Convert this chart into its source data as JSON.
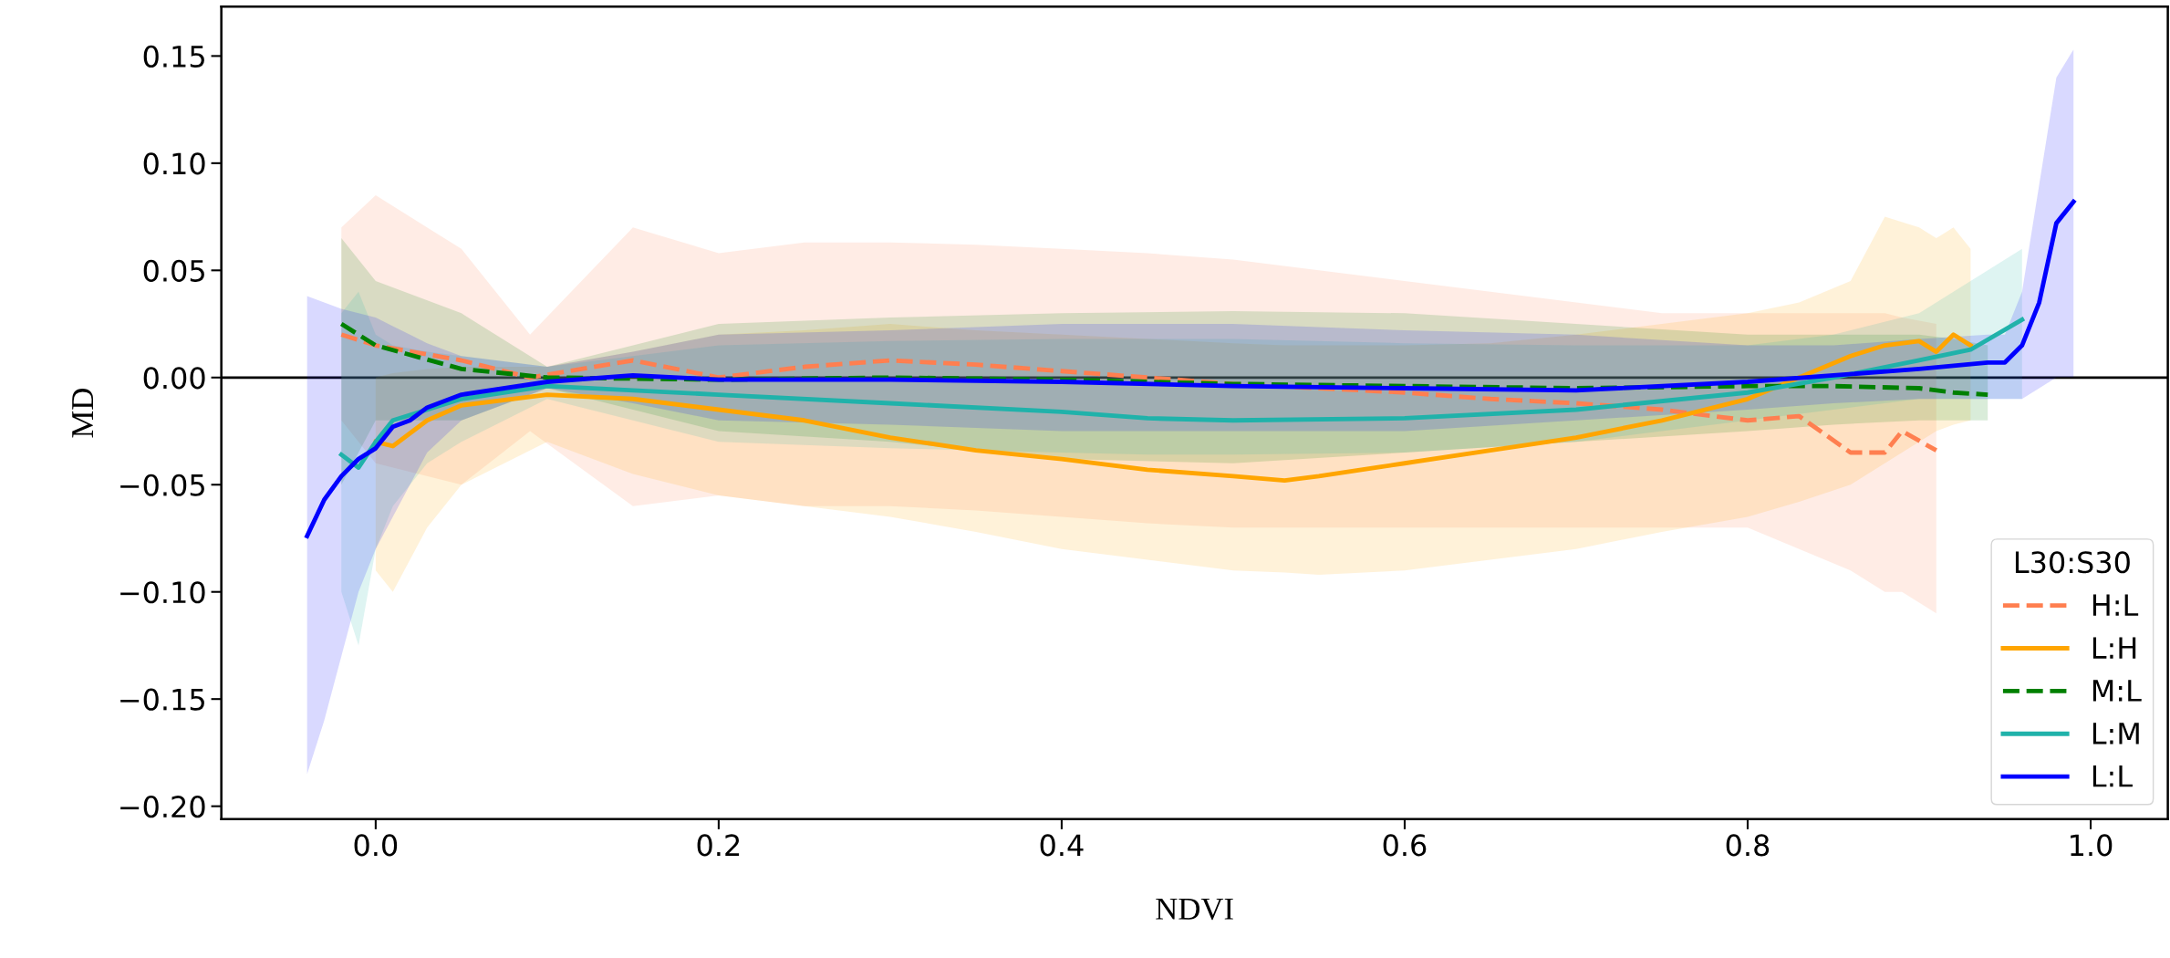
{
  "chart_data": {
    "type": "line",
    "xlabel": "NDVI",
    "ylabel": "MD",
    "legend_title": "L30:S30",
    "legend": "bottom right",
    "grid": false,
    "marker": "none",
    "xlim": [
      -0.09,
      1.045
    ],
    "xticks": [
      {
        "value": 0,
        "label": "0.0"
      },
      0.2,
      0.4,
      0.6,
      0.8,
      {
        "value": 1,
        "label": "1.0"
      }
    ],
    "ylim": [
      -0.206,
      0.173
    ],
    "yticks": [
      {
        "value": -0.2,
        "label": "−0.20"
      },
      {
        "value": -0.15,
        "label": "−0.15"
      },
      {
        "value": -0.1,
        "label": "−0.10"
      },
      {
        "value": -0.05,
        "label": "−0.05"
      },
      {
        "value": 0,
        "label": "0.00"
      },
      {
        "value": 0.05,
        "label": "0.05"
      },
      {
        "value": 0.1,
        "label": "0.10"
      },
      {
        "value": 0.15,
        "label": "0.15"
      }
    ],
    "ref_lines": [
      {
        "axis": "y",
        "value": 0,
        "color": "#000000",
        "line_style": "solid"
      }
    ],
    "series": [
      {
        "name": "H:L",
        "color": "#ff7f50",
        "line_style": "dashed",
        "x": [
          -0.02,
          0.0,
          0.05,
          0.09,
          0.15,
          0.2,
          0.25,
          0.3,
          0.35,
          0.4,
          0.45,
          0.5,
          0.55,
          0.6,
          0.65,
          0.7,
          0.75,
          0.8,
          0.83,
          0.86,
          0.88,
          0.89,
          0.91
        ],
        "values": [
          0.02,
          0.015,
          0.008,
          0.0,
          0.008,
          0.0,
          0.005,
          0.008,
          0.006,
          0.003,
          0.0,
          -0.003,
          -0.005,
          -0.007,
          -0.01,
          -0.012,
          -0.015,
          -0.02,
          -0.018,
          -0.035,
          -0.035,
          -0.025,
          -0.034
        ],
        "upper": [
          0.07,
          0.085,
          0.06,
          0.02,
          0.07,
          0.058,
          0.063,
          0.063,
          0.062,
          0.06,
          0.058,
          0.055,
          0.05,
          0.045,
          0.04,
          0.035,
          0.03,
          0.03,
          0.03,
          0.03,
          0.03,
          0.028,
          0.025
        ],
        "lower": [
          -0.02,
          -0.04,
          -0.05,
          -0.025,
          -0.06,
          -0.055,
          -0.06,
          -0.06,
          -0.062,
          -0.065,
          -0.068,
          -0.07,
          -0.07,
          -0.07,
          -0.07,
          -0.07,
          -0.07,
          -0.07,
          -0.08,
          -0.09,
          -0.1,
          -0.1,
          -0.11
        ]
      },
      {
        "name": "L:H",
        "color": "#ffa500",
        "line_style": "solid",
        "x": [
          0.0,
          0.01,
          0.03,
          0.05,
          0.1,
          0.15,
          0.2,
          0.25,
          0.3,
          0.35,
          0.4,
          0.45,
          0.5,
          0.53,
          0.55,
          0.6,
          0.65,
          0.7,
          0.75,
          0.8,
          0.83,
          0.86,
          0.88,
          0.9,
          0.91,
          0.92,
          0.93
        ],
        "values": [
          -0.03,
          -0.032,
          -0.02,
          -0.013,
          -0.008,
          -0.01,
          -0.015,
          -0.02,
          -0.028,
          -0.034,
          -0.038,
          -0.043,
          -0.046,
          -0.048,
          -0.046,
          -0.04,
          -0.034,
          -0.028,
          -0.02,
          -0.01,
          0.0,
          0.01,
          0.015,
          0.017,
          0.012,
          0.02,
          0.015
        ],
        "upper": [
          0.0,
          0.002,
          0.004,
          0.005,
          0.005,
          0.012,
          0.02,
          0.022,
          0.025,
          0.022,
          0.02,
          0.018,
          0.016,
          0.015,
          0.015,
          0.015,
          0.016,
          0.02,
          0.025,
          0.03,
          0.035,
          0.045,
          0.075,
          0.07,
          0.065,
          0.07,
          0.06
        ],
        "lower": [
          -0.09,
          -0.1,
          -0.07,
          -0.05,
          -0.03,
          -0.045,
          -0.055,
          -0.06,
          -0.065,
          -0.072,
          -0.08,
          -0.085,
          -0.09,
          -0.091,
          -0.092,
          -0.09,
          -0.085,
          -0.08,
          -0.072,
          -0.065,
          -0.058,
          -0.05,
          -0.04,
          -0.03,
          -0.025,
          -0.022,
          -0.02
        ]
      },
      {
        "name": "M:L",
        "color": "#008000",
        "line_style": "dashed",
        "x": [
          -0.02,
          0.0,
          0.05,
          0.1,
          0.2,
          0.3,
          0.4,
          0.5,
          0.6,
          0.7,
          0.8,
          0.85,
          0.9,
          0.92,
          0.94
        ],
        "values": [
          0.025,
          0.015,
          0.004,
          0.0,
          -0.001,
          0.0,
          -0.001,
          -0.003,
          -0.004,
          -0.005,
          -0.004,
          -0.004,
          -0.005,
          -0.007,
          -0.008
        ],
        "upper": [
          0.065,
          0.045,
          0.03,
          0.005,
          0.025,
          0.028,
          0.03,
          0.031,
          0.03,
          0.025,
          0.02,
          0.02,
          0.02,
          0.018,
          0.015
        ],
        "lower": [
          -0.05,
          -0.02,
          -0.02,
          -0.005,
          -0.025,
          -0.03,
          -0.038,
          -0.04,
          -0.035,
          -0.03,
          -0.025,
          -0.022,
          -0.02,
          -0.02,
          -0.02
        ]
      },
      {
        "name": "L:M",
        "color": "#20b2aa",
        "line_style": "solid",
        "x": [
          -0.02,
          -0.01,
          0.0,
          0.01,
          0.03,
          0.05,
          0.1,
          0.2,
          0.3,
          0.4,
          0.45,
          0.5,
          0.6,
          0.7,
          0.8,
          0.85,
          0.9,
          0.93,
          0.96
        ],
        "values": [
          -0.036,
          -0.042,
          -0.03,
          -0.02,
          -0.015,
          -0.01,
          -0.004,
          -0.008,
          -0.012,
          -0.016,
          -0.019,
          -0.02,
          -0.019,
          -0.015,
          -0.007,
          0.0,
          0.008,
          0.013,
          0.027
        ],
        "upper": [
          0.03,
          0.04,
          0.02,
          0.015,
          0.012,
          0.01,
          0.005,
          0.015,
          0.017,
          0.018,
          0.018,
          0.018,
          0.016,
          0.015,
          0.015,
          0.02,
          0.03,
          0.045,
          0.06
        ],
        "lower": [
          -0.1,
          -0.125,
          -0.08,
          -0.06,
          -0.04,
          -0.03,
          -0.01,
          -0.03,
          -0.033,
          -0.035,
          -0.036,
          -0.036,
          -0.035,
          -0.03,
          -0.02,
          -0.015,
          -0.01,
          -0.01,
          -0.01
        ]
      },
      {
        "name": "L:L",
        "color": "#0000ff",
        "line_style": "solid",
        "x": [
          -0.04,
          -0.03,
          -0.02,
          -0.01,
          0.0,
          0.01,
          0.02,
          0.03,
          0.05,
          0.1,
          0.15,
          0.2,
          0.3,
          0.4,
          0.5,
          0.6,
          0.7,
          0.8,
          0.85,
          0.9,
          0.94,
          0.95,
          0.96,
          0.97,
          0.98,
          0.99
        ],
        "values": [
          -0.074,
          -0.057,
          -0.046,
          -0.038,
          -0.033,
          -0.023,
          -0.02,
          -0.014,
          -0.008,
          -0.002,
          0.001,
          -0.001,
          -0.001,
          -0.002,
          -0.004,
          -0.005,
          -0.006,
          -0.002,
          0.001,
          0.004,
          0.007,
          0.007,
          0.015,
          0.035,
          0.072,
          0.082
        ],
        "upper": [
          0.038,
          0.035,
          0.032,
          0.03,
          0.028,
          0.024,
          0.02,
          0.016,
          0.01,
          0.005,
          0.012,
          0.02,
          0.022,
          0.025,
          0.025,
          0.022,
          0.02,
          0.015,
          0.015,
          0.018,
          0.02,
          0.02,
          0.04,
          0.09,
          0.14,
          0.153
        ],
        "lower": [
          -0.185,
          -0.16,
          -0.13,
          -0.1,
          -0.08,
          -0.065,
          -0.05,
          -0.035,
          -0.02,
          -0.005,
          -0.012,
          -0.02,
          -0.022,
          -0.025,
          -0.025,
          -0.025,
          -0.02,
          -0.015,
          -0.012,
          -0.01,
          -0.01,
          -0.01,
          -0.01,
          -0.005,
          0.0,
          0.0
        ]
      }
    ]
  }
}
